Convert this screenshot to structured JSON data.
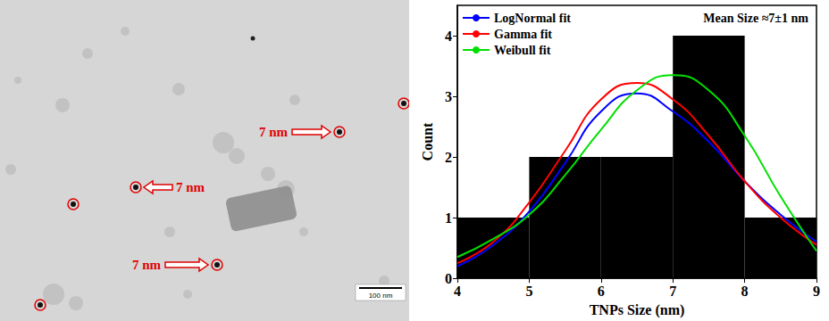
{
  "chart_data": {
    "type": "histogram",
    "bins": [
      4,
      5,
      6,
      7,
      8,
      9
    ],
    "counts": [
      1,
      2,
      2,
      4,
      1
    ],
    "color": "#000000",
    "x": [
      4,
      4.5,
      5,
      5.5,
      6,
      6.5,
      7,
      7.5,
      8,
      8.5,
      9
    ],
    "series": [
      {
        "name": "LogNormal fit",
        "type": "line",
        "color": "#0000ff",
        "values": [
          0.2,
          0.55,
          1.1,
          1.9,
          2.75,
          3.05,
          2.75,
          2.25,
          1.6,
          1.05,
          0.6
        ]
      },
      {
        "name": "Gamma fit",
        "type": "line",
        "color": "#ff0000",
        "values": [
          0.25,
          0.6,
          1.25,
          2.1,
          2.95,
          3.22,
          2.95,
          2.35,
          1.6,
          1.0,
          0.55
        ]
      },
      {
        "name": "Weibull fit",
        "type": "line",
        "color": "#00e000",
        "values": [
          0.35,
          0.65,
          1.05,
          1.7,
          2.45,
          3.1,
          3.35,
          3.1,
          2.35,
          1.35,
          0.45
        ]
      }
    ],
    "annotations": [
      "Mean Size ≈7±1 nm"
    ],
    "xlabel": "TNPs Size (nm)",
    "ylabel": "Count",
    "xlim": [
      4,
      9
    ],
    "xticks": [
      4,
      5,
      6,
      7,
      8,
      9
    ],
    "ylim": [
      0,
      4.5
    ],
    "yticks": [
      0,
      1,
      2,
      3,
      4
    ],
    "grid": false,
    "legend": "upper left"
  },
  "micrograph": {
    "annotations": [
      "7 nm",
      "7 nm",
      "7 nm"
    ],
    "scale_bar": "100 nm"
  }
}
